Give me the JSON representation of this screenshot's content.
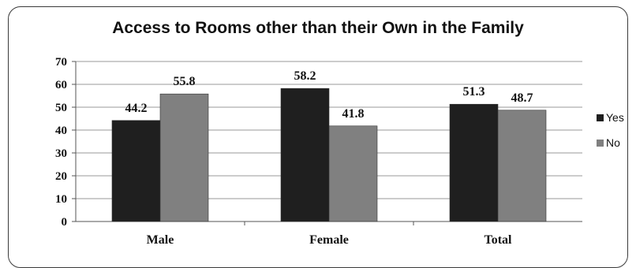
{
  "chart_data": {
    "type": "bar",
    "title": "Access to Rooms other than their Own in the Family",
    "categories": [
      "Male",
      "Female",
      "Total"
    ],
    "series": [
      {
        "name": "Yes",
        "values": [
          44.2,
          58.2,
          51.3
        ],
        "color": "#1f1f1f"
      },
      {
        "name": "No",
        "values": [
          55.8,
          41.8,
          48.7
        ],
        "color": "#808080"
      }
    ],
    "ylim": [
      0,
      70
    ],
    "yticks": [
      0,
      10,
      20,
      30,
      40,
      50,
      60,
      70
    ],
    "grid": true,
    "legend": "right"
  }
}
